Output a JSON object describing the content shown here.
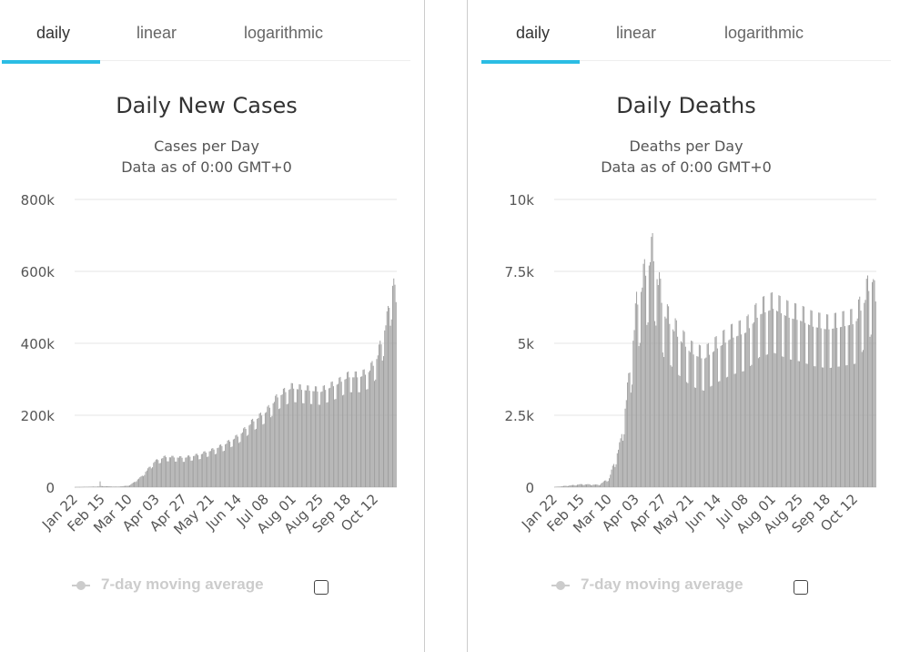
{
  "panels": [
    {
      "tabs": [
        {
          "label": "daily"
        },
        {
          "label": "linear"
        },
        {
          "label": "logarithmic"
        }
      ],
      "active_tab": "daily",
      "legend": {
        "label": "7-day moving average"
      }
    },
    {
      "tabs": [
        {
          "label": "daily"
        },
        {
          "label": "linear"
        },
        {
          "label": "logarithmic"
        }
      ],
      "active_tab": "daily",
      "legend": {
        "label": "7-day moving average"
      }
    }
  ],
  "colors": {
    "bar": "#a0a0a0",
    "bar_stroke": "#7a7a7a",
    "tab_active_underline": "#2bbde4",
    "grid": "#e6e6e6"
  },
  "chart_data": [
    {
      "type": "bar",
      "title": "Daily New Cases",
      "subtitle_lines": [
        "Cases per Day",
        "Data as of 0:00 GMT+0"
      ],
      "y_ticks": [
        "0",
        "200k",
        "400k",
        "600k",
        "800k"
      ],
      "ylim": [
        0,
        800000
      ],
      "x_tick_labels": [
        "Jan 22",
        "Feb 15",
        "Mar 10",
        "Apr 03",
        "Apr 27",
        "May 21",
        "Jun 14",
        "Jul 08",
        "Aug 01",
        "Aug 25",
        "Sep 18",
        "Oct 12"
      ],
      "x_tick_dates": [
        "2020-01-22",
        "2020-02-15",
        "2020-03-10",
        "2020-04-03",
        "2020-04-27",
        "2020-05-21",
        "2020-06-14",
        "2020-07-08",
        "2020-08-01",
        "2020-08-25",
        "2020-09-18",
        "2020-10-12"
      ],
      "x_range": [
        "2020-01-22",
        "2020-10-30"
      ],
      "series": [
        {
          "name": "Daily New Cases",
          "anchors": [
            [
              "2020-01-22",
              500
            ],
            [
              "2020-02-12",
              2000
            ],
            [
              "2020-02-13",
              15000
            ],
            [
              "2020-02-14",
              3000
            ],
            [
              "2020-02-28",
              1500
            ],
            [
              "2020-03-05",
              3000
            ],
            [
              "2020-03-10",
              5000
            ],
            [
              "2020-03-20",
              28000
            ],
            [
              "2020-04-01",
              70000
            ],
            [
              "2020-04-10",
              82000
            ],
            [
              "2020-04-27",
              80000
            ],
            [
              "2020-05-10",
              88000
            ],
            [
              "2020-05-21",
              100000
            ],
            [
              "2020-06-01",
              115000
            ],
            [
              "2020-06-14",
              140000
            ],
            [
              "2020-06-25",
              175000
            ],
            [
              "2020-07-08",
              205000
            ],
            [
              "2020-07-18",
              245000
            ],
            [
              "2020-07-30",
              270000
            ],
            [
              "2020-08-10",
              265000
            ],
            [
              "2020-08-25",
              260000
            ],
            [
              "2020-09-08",
              280000
            ],
            [
              "2020-09-18",
              300000
            ],
            [
              "2020-09-28",
              300000
            ],
            [
              "2020-10-05",
              310000
            ],
            [
              "2020-10-12",
              340000
            ],
            [
              "2020-10-18",
              400000
            ],
            [
              "2020-10-23",
              470000
            ],
            [
              "2020-10-28",
              570000
            ],
            [
              "2020-10-30",
              480000
            ]
          ],
          "weekly_amplitude": 0.12
        }
      ],
      "legend": {
        "placement": "bottom",
        "moving_average_enabled": false
      }
    },
    {
      "type": "bar",
      "title": "Daily Deaths",
      "subtitle_lines": [
        "Deaths per Day",
        "Data as of 0:00 GMT+0"
      ],
      "y_ticks": [
        "0",
        "2.5k",
        "5k",
        "7.5k",
        "10k"
      ],
      "ylim": [
        0,
        10000
      ],
      "x_tick_labels": [
        "Jan 22",
        "Feb 15",
        "Mar 10",
        "Apr 03",
        "Apr 27",
        "May 21",
        "Jun 14",
        "Jul 08",
        "Aug 01",
        "Aug 25",
        "Sep 18",
        "Oct 12"
      ],
      "x_tick_dates": [
        "2020-01-22",
        "2020-02-15",
        "2020-03-10",
        "2020-04-03",
        "2020-04-27",
        "2020-05-21",
        "2020-06-14",
        "2020-07-08",
        "2020-08-01",
        "2020-08-25",
        "2020-09-18",
        "2020-10-12"
      ],
      "x_range": [
        "2020-01-22",
        "2020-10-30"
      ],
      "series": [
        {
          "name": "Daily Deaths",
          "anchors": [
            [
              "2020-01-22",
              10
            ],
            [
              "2020-02-05",
              60
            ],
            [
              "2020-02-15",
              100
            ],
            [
              "2020-03-01",
              80
            ],
            [
              "2020-03-10",
              300
            ],
            [
              "2020-03-20",
              1500
            ],
            [
              "2020-03-27",
              3500
            ],
            [
              "2020-04-03",
              6000
            ],
            [
              "2020-04-10",
              7000
            ],
            [
              "2020-04-17",
              7800
            ],
            [
              "2020-04-27",
              5800
            ],
            [
              "2020-05-10",
              5000
            ],
            [
              "2020-05-21",
              4500
            ],
            [
              "2020-06-01",
              4300
            ],
            [
              "2020-06-14",
              4700
            ],
            [
              "2020-06-25",
              5000
            ],
            [
              "2020-07-08",
              5200
            ],
            [
              "2020-07-20",
              5800
            ],
            [
              "2020-08-01",
              6000
            ],
            [
              "2020-08-15",
              5700
            ],
            [
              "2020-08-25",
              5600
            ],
            [
              "2020-09-05",
              5400
            ],
            [
              "2020-09-18",
              5300
            ],
            [
              "2020-10-01",
              5400
            ],
            [
              "2020-10-12",
              5500
            ],
            [
              "2020-10-20",
              6200
            ],
            [
              "2020-10-28",
              7000
            ],
            [
              "2020-10-30",
              5700
            ]
          ],
          "weekly_amplitude": 0.22
        }
      ],
      "legend": {
        "placement": "bottom",
        "moving_average_enabled": false
      }
    }
  ]
}
